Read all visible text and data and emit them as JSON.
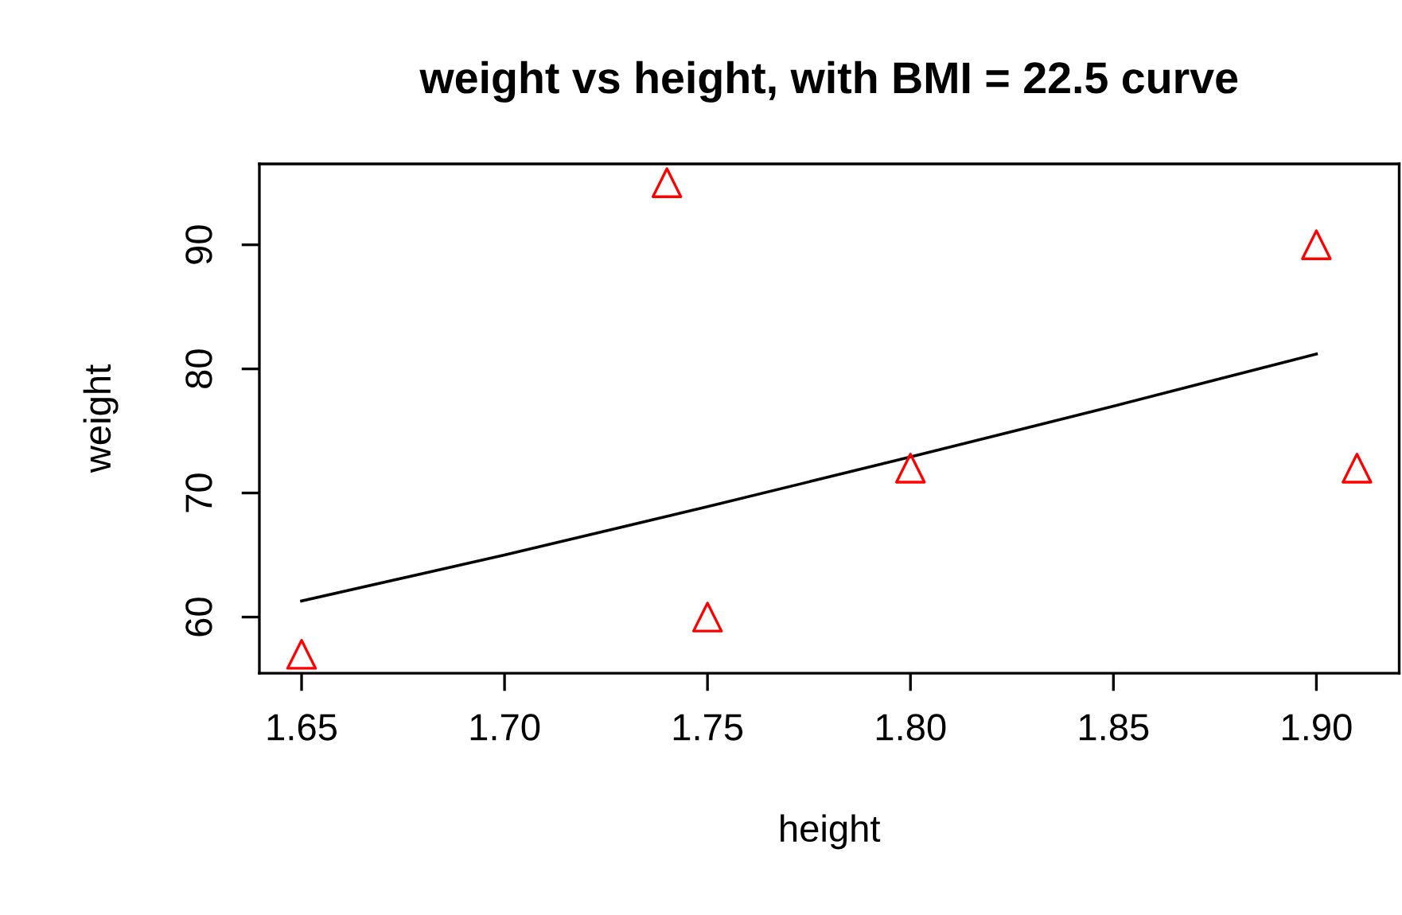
{
  "chart_data": {
    "type": "scatter",
    "title": "weight vs height, with BMI = 22.5 curve",
    "xlabel": "height",
    "ylabel": "weight",
    "xlim": [
      1.6396,
      1.9204
    ],
    "ylim": [
      55.48,
      96.52
    ],
    "xticks": [
      {
        "value": 1.65,
        "label": "1.65"
      },
      {
        "value": 1.7,
        "label": "1.70"
      },
      {
        "value": 1.75,
        "label": "1.75"
      },
      {
        "value": 1.8,
        "label": "1.80"
      },
      {
        "value": 1.85,
        "label": "1.85"
      },
      {
        "value": 1.9,
        "label": "1.90"
      }
    ],
    "yticks": [
      60,
      70,
      80,
      90
    ],
    "grid": false,
    "legend": false,
    "series": [
      {
        "color": "#ff0000",
        "marker": "triangle",
        "x": [
          1.65,
          1.74,
          1.75,
          1.8,
          1.9,
          1.91
        ],
        "values": [
          57,
          95,
          60,
          72,
          90,
          72
        ]
      },
      {
        "type": "line",
        "color": "#000000",
        "marker": "none",
        "line_style": "solid",
        "x": [
          1.65,
          1.7,
          1.75,
          1.8,
          1.85,
          1.9
        ],
        "values": [
          61.3,
          65.0,
          68.9,
          72.9,
          77.0,
          81.2
        ]
      }
    ]
  }
}
